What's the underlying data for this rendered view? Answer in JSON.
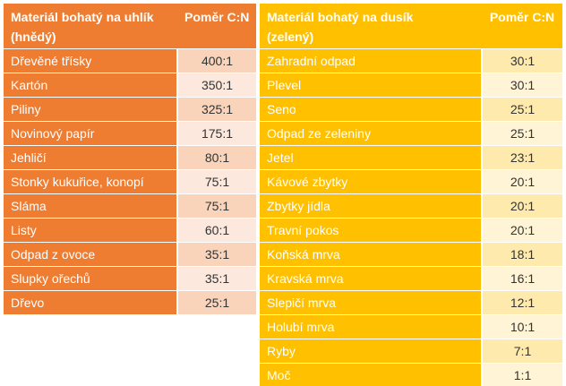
{
  "carbon_table": {
    "header_name_line1": "Materiál bohatý na uhlík",
    "header_name_line2": "(hnědý)",
    "header_ratio": "Poměr C:N",
    "rows": [
      {
        "name": "Dřevěné třísky",
        "ratio": "400:1"
      },
      {
        "name": "Kartón",
        "ratio": "350:1"
      },
      {
        "name": "Piliny",
        "ratio": "325:1"
      },
      {
        "name": "Novinový papír",
        "ratio": "175:1"
      },
      {
        "name": "Jehličí",
        "ratio": "80:1"
      },
      {
        "name": "Stonky kukuřice, konopí",
        "ratio": "75:1"
      },
      {
        "name": "Sláma",
        "ratio": "75:1"
      },
      {
        "name": "Listy",
        "ratio": "60:1"
      },
      {
        "name": "Odpad z ovoce",
        "ratio": "35:1"
      },
      {
        "name": "Slupky ořechů",
        "ratio": "35:1"
      },
      {
        "name": "Dřevo",
        "ratio": "25:1"
      }
    ]
  },
  "nitrogen_table": {
    "header_name_line1": "Materiál bohatý na dusík",
    "header_name_line2": "(zelený)",
    "header_ratio": "Poměr C:N",
    "rows": [
      {
        "name": "Zahradní odpad",
        "ratio": "30:1"
      },
      {
        "name": "Plevel",
        "ratio": "30:1"
      },
      {
        "name": "Seno",
        "ratio": "25:1"
      },
      {
        "name": "Odpad ze zeleniny",
        "ratio": "25:1"
      },
      {
        "name": "Jetel",
        "ratio": "23:1"
      },
      {
        "name": "Kávové zbytky",
        "ratio": "20:1"
      },
      {
        "name": "Zbytky jídla",
        "ratio": "20:1"
      },
      {
        "name": "Travní pokos",
        "ratio": "20:1"
      },
      {
        "name": "Koňská mrva",
        "ratio": "18:1"
      },
      {
        "name": "Kravská mrva",
        "ratio": "16:1"
      },
      {
        "name": "Slepičí mrva",
        "ratio": "12:1"
      },
      {
        "name": "Holubí mrva",
        "ratio": "10:1"
      },
      {
        "name": "Ryby",
        "ratio": "7:1"
      },
      {
        "name": "Moč",
        "ratio": "1:1"
      }
    ]
  },
  "colors": {
    "carbon_accent": "#ef7d31",
    "nitrogen_accent": "#ffc000"
  }
}
